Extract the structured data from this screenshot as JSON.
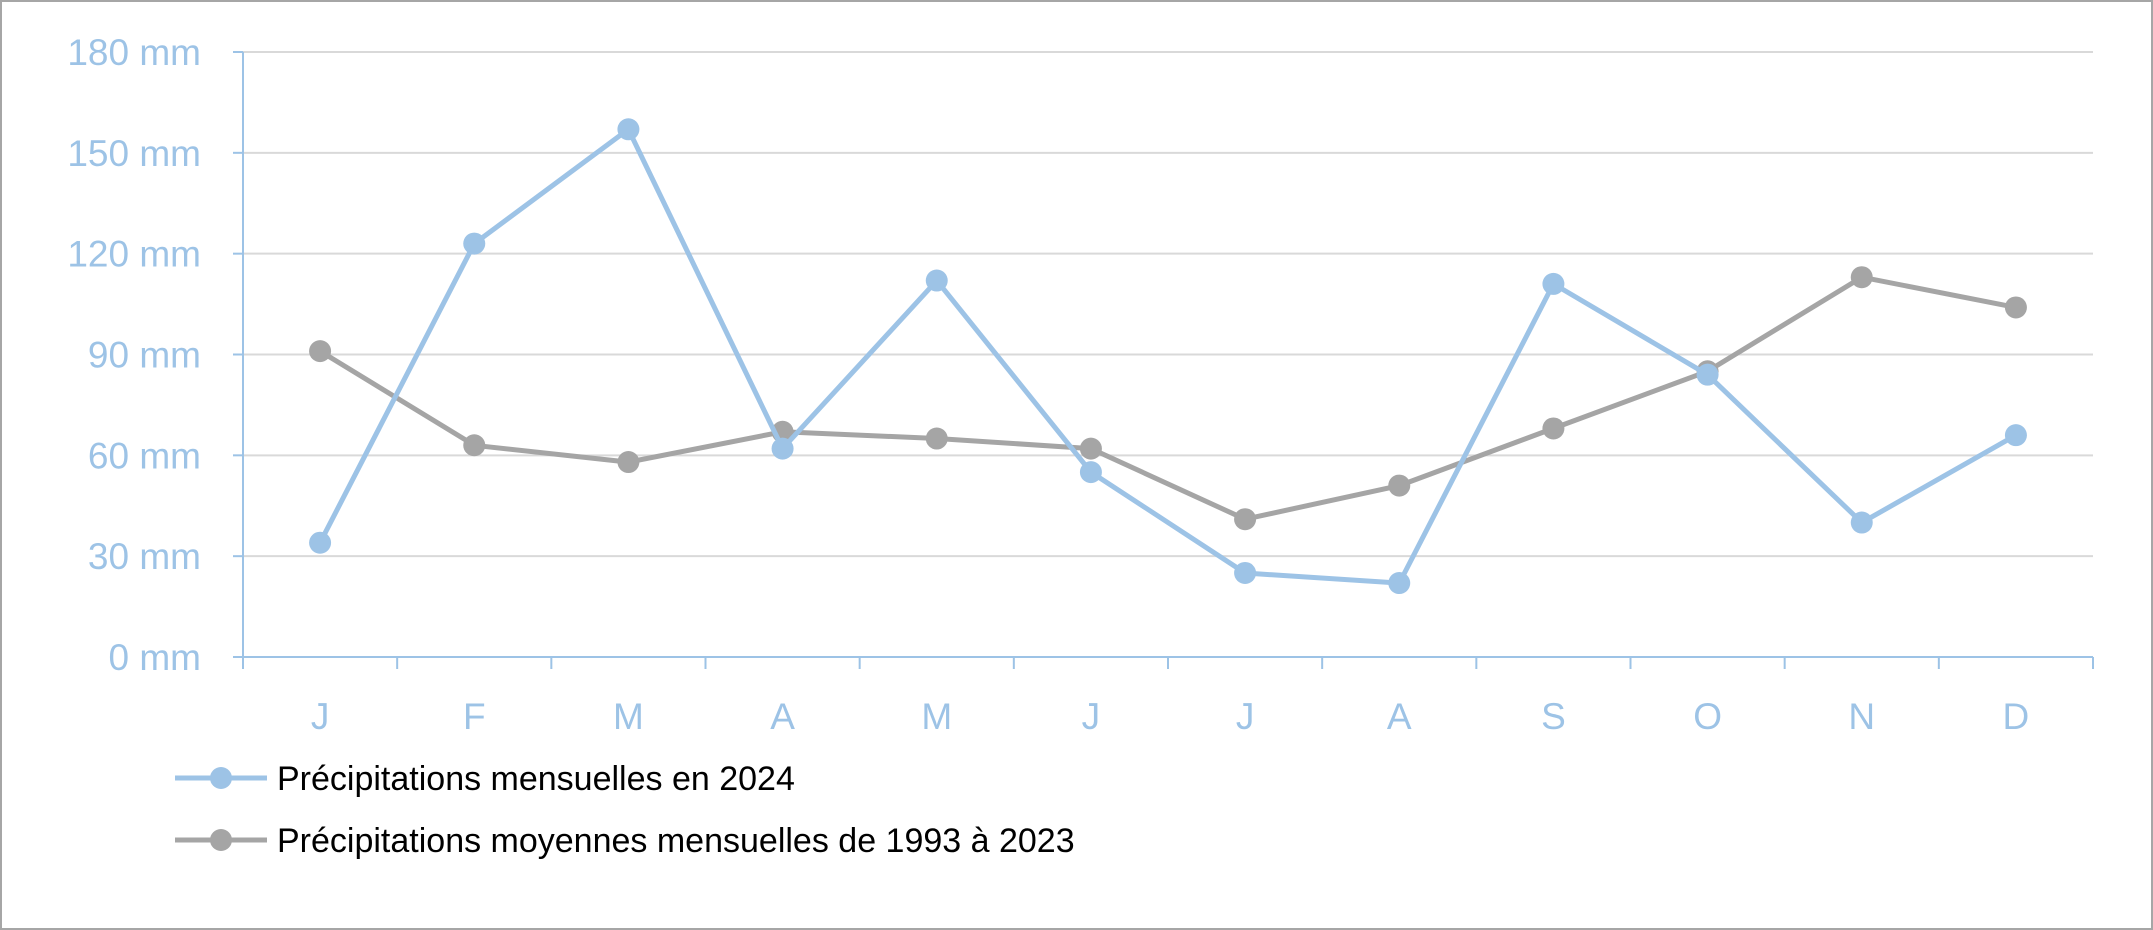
{
  "chart_data": {
    "type": "line",
    "categories": [
      "J",
      "F",
      "M",
      "A",
      "M",
      "J",
      "J",
      "A",
      "S",
      "O",
      "N",
      "D"
    ],
    "series": [
      {
        "name": "Précipitations mensuelles en 2024",
        "color": "#9dc3e6",
        "values": [
          34,
          123,
          157,
          62,
          112,
          55,
          25,
          22,
          111,
          84,
          40,
          66
        ]
      },
      {
        "name": "Précipitations moyennes mensuelles de 1993 à 2023",
        "color": "#a5a5a5",
        "values": [
          91,
          63,
          58,
          67,
          65,
          62,
          41,
          51,
          68,
          85,
          113,
          104
        ]
      }
    ],
    "yticks": [
      "0 mm",
      "30 mm",
      "60 mm",
      "90 mm",
      "120 mm",
      "150 mm",
      "180 mm"
    ],
    "ylim": [
      0,
      180
    ],
    "ystep": 30,
    "grid": true,
    "legend_position": "bottom-left",
    "axis_color": "#9dc3e6",
    "grid_color": "#d9d9d9"
  }
}
